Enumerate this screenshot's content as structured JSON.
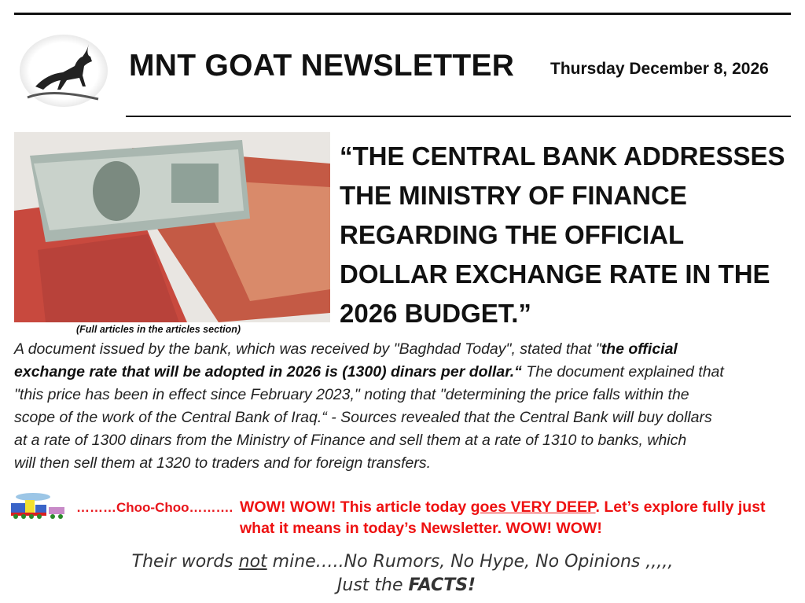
{
  "header": {
    "title": "MNT GOAT NEWSLETTER",
    "date": "Thursday December 8, 2026"
  },
  "headline": [
    "“THE CENTRAL BANK ADDRESSES",
    "THE MINISTRY OF FINANCE",
    "REGARDING THE OFFICIAL",
    "DOLLAR EXCHANGE RATE IN THE",
    "2026 BUDGET.”"
  ],
  "caption": "(Full articles in the articles section)",
  "body": {
    "l1a": "A document issued by the bank, which was received by \"Baghdad Today\", stated that \"",
    "l1b": "the official",
    "l2a": "exchange rate that will be adopted in 2026 is (1300) dinars per dollar.“",
    "l2b": " The document explained that",
    "l3": "\"this price has been in effect since February 2023,\" noting that \"determining the price falls within the",
    "l4": "scope of the work of the Central Bank of Iraq.“ - Sources revealed that the Central Bank will buy dollars",
    "l5": "at a rate of 1300 dinars from the Ministry of Finance and sell them at a rate of 1310 to banks, which",
    "l6": "will then sell them at 1320 to traders and for foreign transfers."
  },
  "choo": "………Choo-Choo……….",
  "wow": {
    "l1a": "WOW! WOW! This article today ",
    "l1u": "goes VERY DEEP",
    "l1b": ". Let’s explore fully just",
    "l2": "what it means in today’s Newsletter. WOW! WOW!"
  },
  "footer": {
    "a": "Their words ",
    "u": "not",
    "b": " mine…..No Rumors, No Hype, No Opinions ,,,,,",
    "c": "Just the ",
    "d": "FACTS!"
  },
  "colors": {
    "accent": "#ee1111"
  }
}
